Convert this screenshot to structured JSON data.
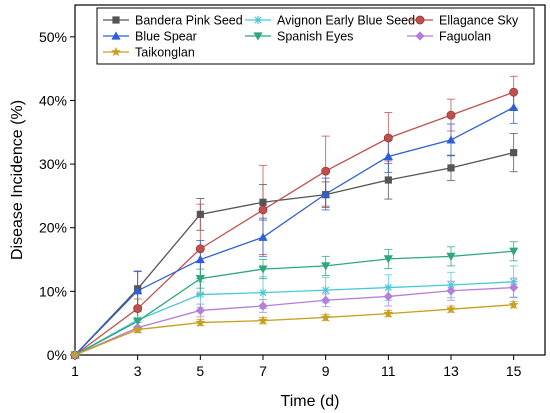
{
  "chart_data": {
    "type": "line",
    "title": "",
    "xlabel": "Time (d)",
    "ylabel": "Disease Incidence (%)",
    "x": [
      1,
      3,
      5,
      7,
      9,
      11,
      13,
      15
    ],
    "x_ticks": [
      "1",
      "3",
      "5",
      "7",
      "9",
      "11",
      "13",
      "15"
    ],
    "y_ticks": [
      "0%",
      "10%",
      "20%",
      "30%",
      "40%",
      "50%"
    ],
    "xlim": [
      1,
      16
    ],
    "ylim": [
      0,
      55
    ],
    "error_bars": true,
    "legend_position": "top",
    "series": [
      {
        "name": "Bandera Pink Seed",
        "color": "#555555",
        "marker": "square",
        "values": [
          0,
          10.4,
          22.1,
          24.0,
          25.2,
          27.5,
          29.4,
          31.8
        ],
        "errors": [
          0,
          2.8,
          2.5,
          2.8,
          2.0,
          3.0,
          2.0,
          3.0
        ]
      },
      {
        "name": "Avignon Early Blue Seed",
        "color": "#4cc9d6",
        "marker": "asterisk",
        "values": [
          0,
          5.5,
          9.5,
          9.8,
          10.2,
          10.6,
          11.0,
          11.5
        ],
        "errors": [
          0,
          1.5,
          2.0,
          2.5,
          2.0,
          2.0,
          2.0,
          2.5
        ]
      },
      {
        "name": "Ellagance Sky",
        "color": "#c0504d",
        "marker": "circle",
        "values": [
          0,
          7.3,
          16.7,
          22.8,
          28.9,
          34.1,
          37.7,
          41.3
        ],
        "errors": [
          0,
          1.5,
          7.0,
          7.0,
          5.5,
          4.0,
          2.5,
          2.5
        ]
      },
      {
        "name": "Blue Spear",
        "color": "#2e5fd6",
        "marker": "triangle-up",
        "values": [
          0,
          10.1,
          15.0,
          18.5,
          25.3,
          31.2,
          33.8,
          38.9
        ],
        "errors": [
          0,
          3.0,
          3.0,
          3.0,
          2.5,
          2.5,
          2.5,
          2.5
        ]
      },
      {
        "name": "Spanish Eyes",
        "color": "#2da87a",
        "marker": "triangle-down",
        "values": [
          0,
          5.3,
          12.0,
          13.5,
          14.0,
          15.1,
          15.5,
          16.3
        ],
        "errors": [
          0,
          1.5,
          1.5,
          1.5,
          1.5,
          1.5,
          1.5,
          1.5
        ]
      },
      {
        "name": "Faguolan",
        "color": "#b57fd9",
        "marker": "diamond",
        "values": [
          0,
          4.3,
          7.0,
          7.7,
          8.6,
          9.2,
          10.1,
          10.6
        ],
        "errors": [
          0,
          0.8,
          1.0,
          1.0,
          1.0,
          1.5,
          1.5,
          1.5
        ]
      },
      {
        "name": "Taikonglan",
        "color": "#c8a020",
        "marker": "star",
        "values": [
          0,
          4.0,
          5.1,
          5.4,
          5.9,
          6.5,
          7.2,
          7.9
        ],
        "errors": [
          0,
          0.5,
          0.5,
          0.5,
          0.5,
          0.5,
          0.5,
          0.5
        ]
      }
    ]
  }
}
